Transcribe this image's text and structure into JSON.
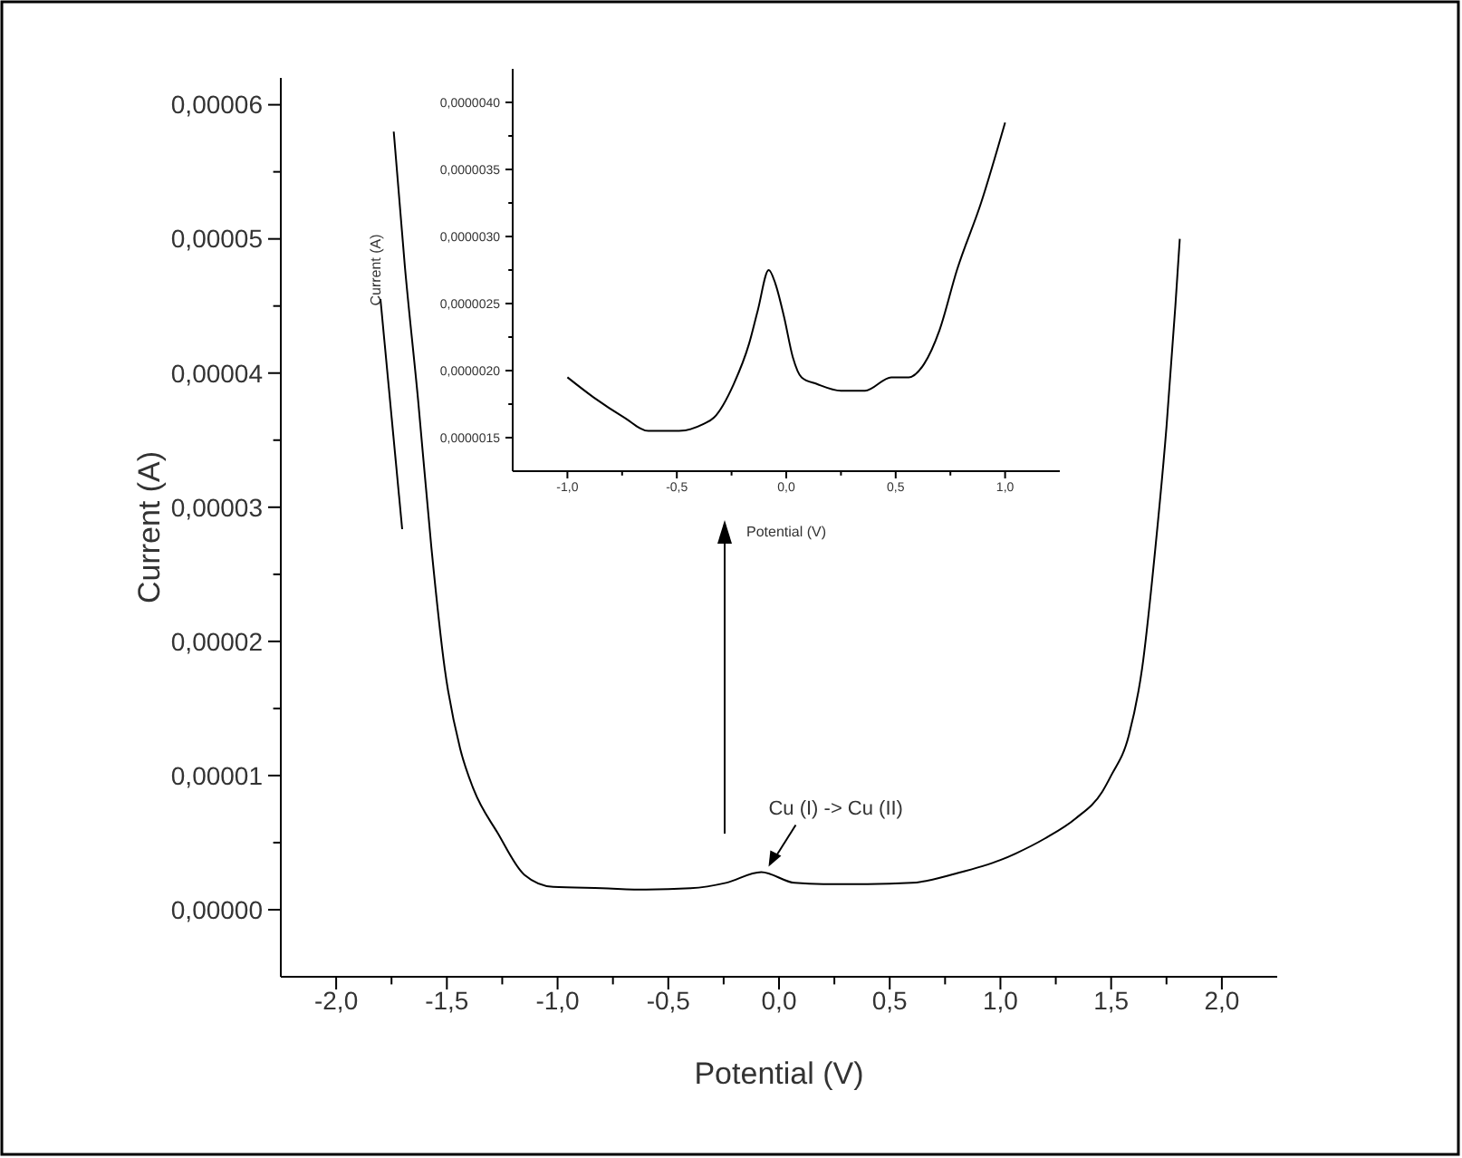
{
  "chart_data": [
    {
      "type": "line",
      "xlabel": "Potential (V)",
      "ylabel": "Current (A)",
      "xlim": [
        -2.25,
        2.25
      ],
      "ylim": [
        -5e-06,
        6.2e-05
      ],
      "xticks": [
        {
          "value": -2,
          "label": "-2,0"
        },
        {
          "value": -1.75,
          "label": null
        },
        {
          "value": -1.5,
          "label": "-1,5"
        },
        {
          "value": -1.25,
          "label": null
        },
        {
          "value": -1,
          "label": "-1,0"
        },
        {
          "value": -0.75,
          "label": null
        },
        {
          "value": -0.5,
          "label": "-0,5"
        },
        {
          "value": -0.25,
          "label": null
        },
        {
          "value": 0,
          "label": "0,0"
        },
        {
          "value": 0.25,
          "label": null
        },
        {
          "value": 0.5,
          "label": "0,5"
        },
        {
          "value": 0.75,
          "label": null
        },
        {
          "value": 1,
          "label": "1,0"
        },
        {
          "value": 1.25,
          "label": null
        },
        {
          "value": 1.5,
          "label": "1,5"
        },
        {
          "value": 1.75,
          "label": null
        },
        {
          "value": 2,
          "label": "2,0"
        }
      ],
      "yticks": [
        {
          "value": 0,
          "label": "0,00000"
        },
        {
          "value": 5e-06,
          "label": null
        },
        {
          "value": 1e-05,
          "label": "0,00001"
        },
        {
          "value": 1.5e-05,
          "label": null
        },
        {
          "value": 2e-05,
          "label": "0,00002"
        },
        {
          "value": 2.5e-05,
          "label": null
        },
        {
          "value": 3e-05,
          "label": "0,00003"
        },
        {
          "value": 3.5e-05,
          "label": null
        },
        {
          "value": 4e-05,
          "label": "0,00004"
        },
        {
          "value": 4.5e-05,
          "label": null
        },
        {
          "value": 5e-05,
          "label": "0,00005"
        },
        {
          "value": 5.5e-05,
          "label": null
        },
        {
          "value": 6e-05,
          "label": "0,00006"
        }
      ],
      "x": [
        -1.74,
        -1.69,
        -1.63,
        -1.57,
        -1.51,
        -1.44,
        -1.38,
        -1.27,
        -1.15,
        -1.02,
        -0.8,
        -0.6,
        -0.4,
        -0.24,
        -0.08,
        0.07,
        0.2,
        0.4,
        0.6,
        0.8,
        1.0,
        1.07,
        1.2,
        1.34,
        1.46,
        1.5,
        1.58,
        1.64,
        1.7,
        1.75,
        1.79,
        1.81
      ],
      "series": [
        {
          "color": "#000000",
          "values": [
            5.8e-05,
            4.8e-05,
            3.8e-05,
            2.7e-05,
            1.8e-05,
            1.2e-05,
            9e-06,
            5.7e-06,
            2.6e-06,
            1.7e-06,
            1.6e-06,
            1.5e-06,
            1.6e-06,
            2e-06,
            2.8e-06,
            2e-06,
            1.9e-06,
            1.9e-06,
            2e-06,
            2.7e-06,
            3.7e-06,
            4.2e-06,
            5.3e-06,
            6.8e-06,
            8.8e-06,
            1e-05,
            1.3e-05,
            1.8e-05,
            2.7e-05,
            3.6e-05,
            4.5e-05,
            5e-05
          ]
        }
      ],
      "annotations": [
        {
          "text": "Cu (I) -> Cu (II)",
          "x": -0.08,
          "y": 2.8e-06
        }
      ]
    },
    {
      "type": "line",
      "xlabel": "Potential (V)",
      "ylabel": "Current (A)",
      "xlim": [
        -1.25,
        1.25
      ],
      "ylim": [
        1.25e-06,
        4.25e-06
      ],
      "xticks": [
        {
          "value": -1,
          "label": "-1,0"
        },
        {
          "value": -0.75,
          "label": null
        },
        {
          "value": -0.5,
          "label": "-0,5"
        },
        {
          "value": -0.25,
          "label": null
        },
        {
          "value": 0,
          "label": "0,0"
        },
        {
          "value": 0.25,
          "label": null
        },
        {
          "value": 0.5,
          "label": "0,5"
        },
        {
          "value": 0.75,
          "label": null
        },
        {
          "value": 1,
          "label": "1,0"
        }
      ],
      "yticks": [
        {
          "value": 1.5e-06,
          "label": "0,0000015"
        },
        {
          "value": 1.75e-06,
          "label": null
        },
        {
          "value": 2e-06,
          "label": "0,0000020"
        },
        {
          "value": 2.25e-06,
          "label": null
        },
        {
          "value": 2.5e-06,
          "label": "0,0000025"
        },
        {
          "value": 2.75e-06,
          "label": null
        },
        {
          "value": 3e-06,
          "label": "0,0000030"
        },
        {
          "value": 3.25e-06,
          "label": null
        },
        {
          "value": 3.5e-06,
          "label": "0,0000035"
        },
        {
          "value": 3.75e-06,
          "label": null
        },
        {
          "value": 4e-06,
          "label": "0,0000040"
        }
      ],
      "x": [
        -1.0,
        -0.88,
        -0.74,
        -0.63,
        -0.49,
        -0.38,
        -0.33,
        -0.24,
        -0.17,
        -0.13,
        -0.08,
        -0.05,
        -0.01,
        0.03,
        0.07,
        0.14,
        0.25,
        0.36,
        0.48,
        0.56,
        0.63,
        0.7,
        0.78,
        0.89,
        1.0
      ],
      "series": [
        {
          "color": "#000000",
          "values": [
            1.95e-06,
            1.8e-06,
            1.65e-06,
            1.55e-06,
            1.55e-06,
            1.6e-06,
            1.65e-06,
            1.9e-06,
            2.2e-06,
            2.45e-06,
            2.75e-06,
            2.65e-06,
            2.4e-06,
            2.1e-06,
            1.95e-06,
            1.9e-06,
            1.85e-06,
            1.85e-06,
            1.95e-06,
            1.95e-06,
            2.05e-06,
            2.3e-06,
            2.75e-06,
            3.25e-06,
            3.85e-06
          ]
        }
      ]
    }
  ]
}
